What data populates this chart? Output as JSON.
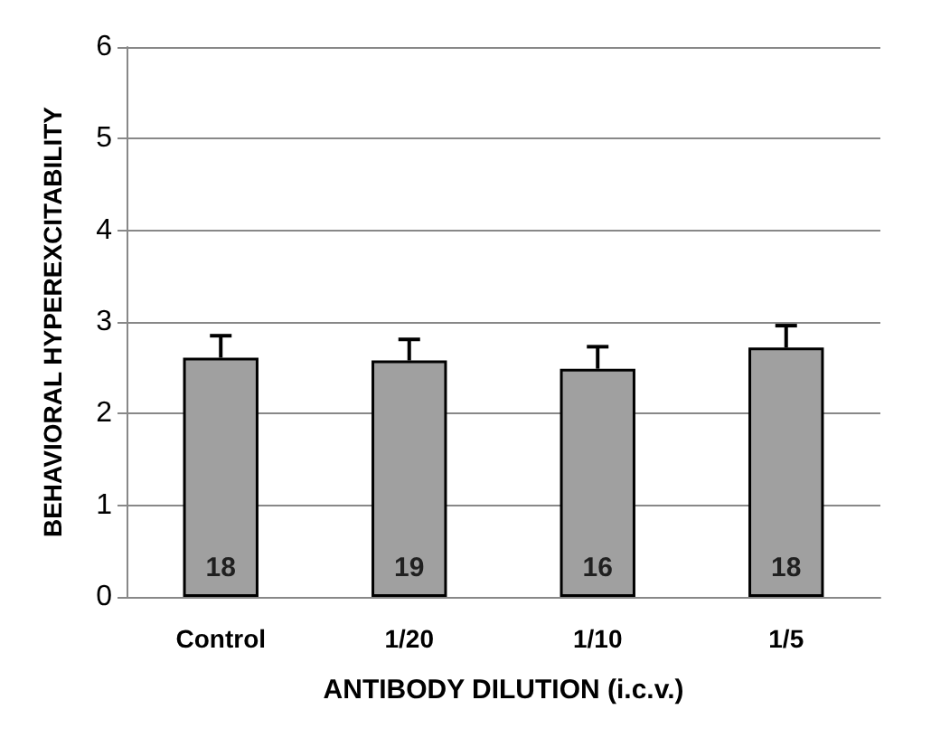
{
  "chart_data": {
    "type": "bar",
    "xlabel": "ANTIBODY DILUTION (i.c.v.)",
    "ylabel": "BEHAVIORAL HYPEREXCITABILITY",
    "categories": [
      "Control",
      "1/20",
      "1/10",
      "1/5"
    ],
    "values": [
      2.61,
      2.58,
      2.49,
      2.72
    ],
    "errors": [
      [
        2.61,
        2.85
      ],
      [
        2.58,
        2.81
      ],
      [
        2.49,
        2.73
      ],
      [
        2.72,
        2.96
      ]
    ],
    "color": "#a0a0a0",
    "ylim": [
      0,
      6
    ],
    "yticks": [
      0,
      1,
      2,
      3,
      4,
      5,
      6
    ],
    "grid": "y",
    "annotations": [
      "18",
      "19",
      "16",
      "18"
    ]
  }
}
